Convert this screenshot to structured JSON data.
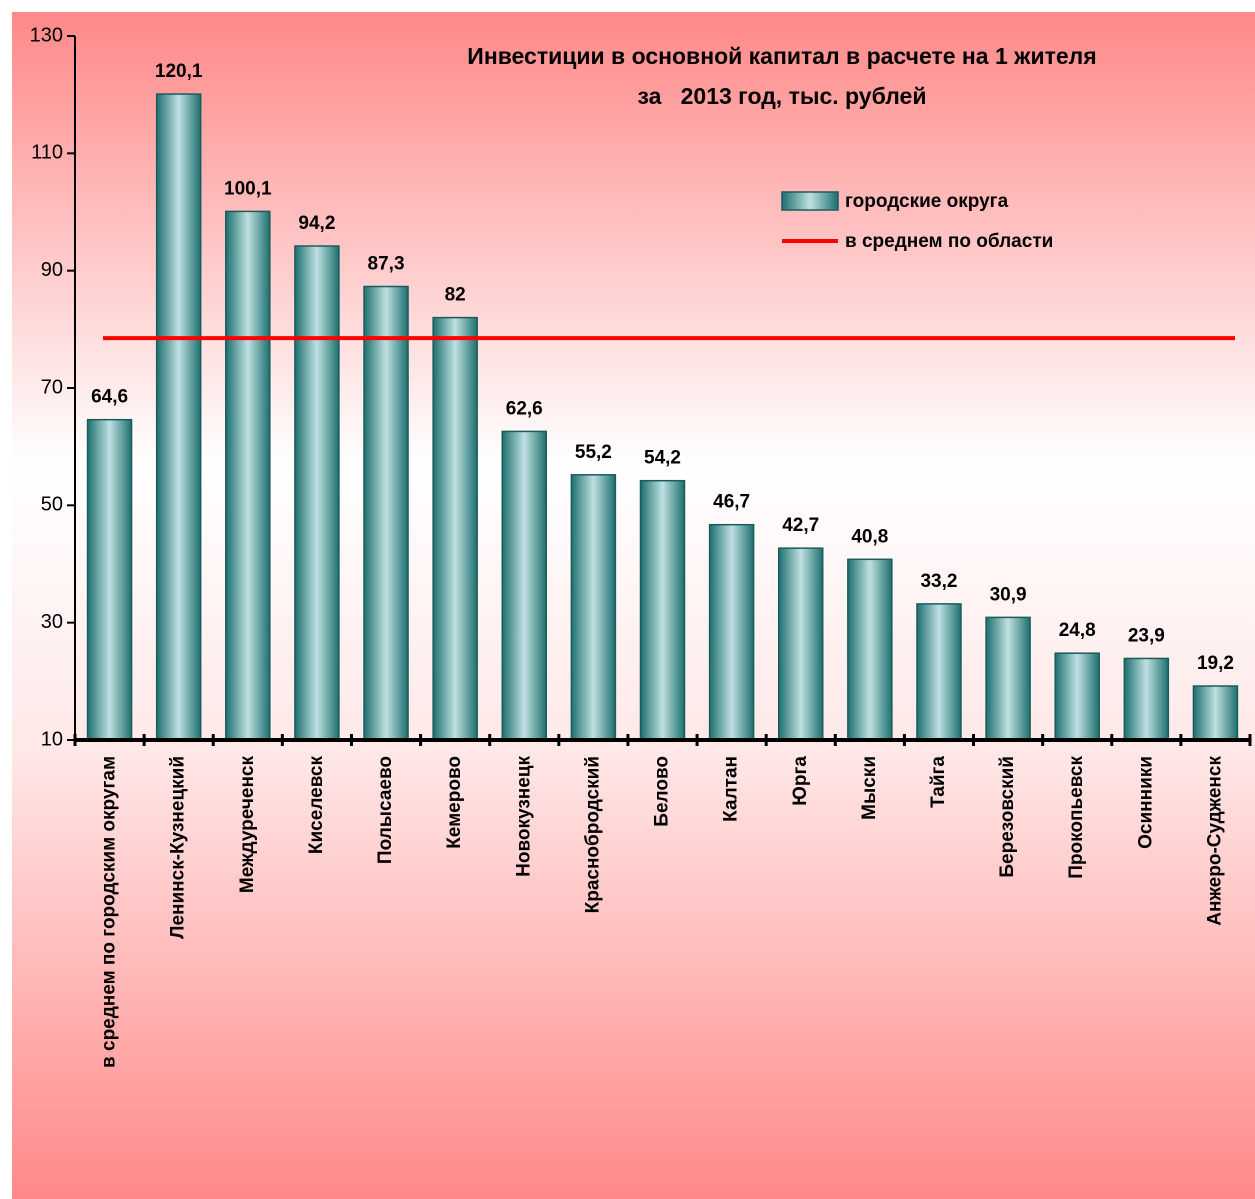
{
  "chart_data": {
    "type": "bar",
    "title": [
      "Инвестиции в основной капитал в расчете на 1 жителя",
      "за   2013 год, тыс. рублей"
    ],
    "categories": [
      "в среднем по городским округам",
      "Ленинск-Кузнецкий",
      "Междуреченск",
      "Киселевск",
      "Полысаево",
      "Кемерово",
      "Новокузнецк",
      "Краснобродский",
      "Белово",
      "Калтан",
      "Юрга",
      "Мыски",
      "Тайга",
      "Березовский",
      "Прокопьевск",
      "Осинники",
      "Анжеро-Судженск"
    ],
    "series": [
      {
        "name": "городские округа",
        "color": "#2a8c8c",
        "values": [
          64.6,
          120.1,
          100.1,
          94.2,
          87.3,
          82,
          62.6,
          55.2,
          54.2,
          46.7,
          42.7,
          40.8,
          33.2,
          30.9,
          24.8,
          23.9,
          19.2
        ],
        "value_labels": [
          "64,6",
          "120,1",
          "100,1",
          "94,2",
          "87,3",
          "82",
          "62,6",
          "55,2",
          "54,2",
          "46,7",
          "42,7",
          "40,8",
          "33,2",
          "30,9",
          "24,8",
          "23,9",
          "19,2"
        ]
      }
    ],
    "average": {
      "name": "в среднем по области",
      "color": "#ff0000",
      "value": 78.5
    },
    "ylim": [
      10,
      130
    ],
    "yticks": [
      10,
      30,
      50,
      70,
      90,
      110,
      130
    ]
  }
}
